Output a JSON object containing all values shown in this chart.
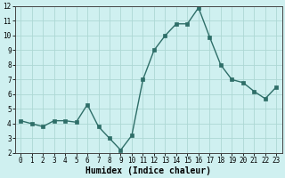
{
  "x": [
    0,
    1,
    2,
    3,
    4,
    5,
    6,
    7,
    8,
    9,
    10,
    11,
    12,
    13,
    14,
    15,
    16,
    17,
    18,
    19,
    20,
    21,
    22,
    23
  ],
  "y": [
    4.2,
    4.0,
    3.8,
    4.2,
    4.2,
    4.1,
    5.3,
    3.8,
    3.0,
    2.2,
    3.2,
    7.0,
    9.0,
    10.0,
    10.8,
    10.8,
    11.9,
    9.9,
    8.0,
    7.0,
    6.8,
    6.2,
    5.7,
    6.5
  ],
  "xlabel": "Humidex (Indice chaleur)",
  "bg_color": "#cff0f0",
  "grid_color": "#add8d4",
  "line_color": "#2e6e68",
  "marker_color": "#2e6e68",
  "ylim": [
    2,
    12
  ],
  "xlim_min": -0.5,
  "xlim_max": 23.5,
  "yticks": [
    2,
    3,
    4,
    5,
    6,
    7,
    8,
    9,
    10,
    11,
    12
  ],
  "xticks": [
    0,
    1,
    2,
    3,
    4,
    5,
    6,
    7,
    8,
    9,
    10,
    11,
    12,
    13,
    14,
    15,
    16,
    17,
    18,
    19,
    20,
    21,
    22,
    23
  ],
  "figsize": [
    3.2,
    2.0
  ],
  "dpi": 100,
  "tick_fontsize": 5.5,
  "xlabel_fontsize": 7.0,
  "linewidth": 1.0,
  "markersize": 2.2
}
